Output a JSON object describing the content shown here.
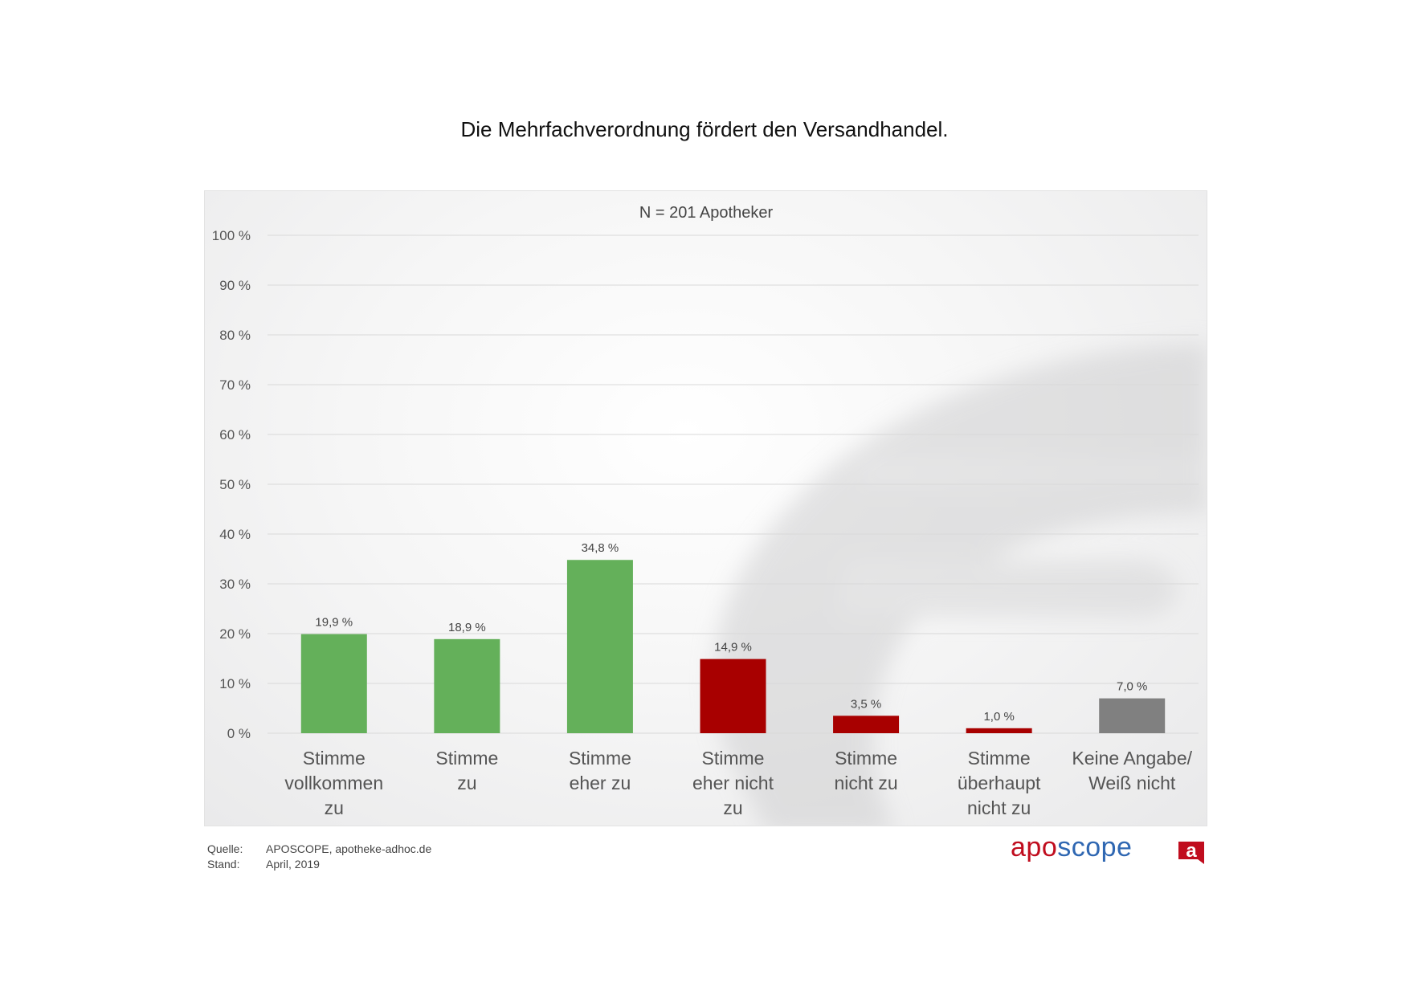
{
  "page": {
    "title": "Die Mehrfachverordnung fördert den Versandhandel."
  },
  "footer": {
    "source_label": "Quelle:",
    "source_value": "APOSCOPE, apotheke-adhoc.de",
    "date_label": "Stand:",
    "date_value": "April, 2019"
  },
  "logo": {
    "text_part1": "apo",
    "text_part2": "scope",
    "mark_letter": "a"
  },
  "colors": {
    "agree": "#64b05a",
    "disagree": "#a80000",
    "neutral": "#808080",
    "logo_red": "#c00d1e",
    "logo_blue": "#2f67b2"
  },
  "chart_data": {
    "type": "bar",
    "title": "Die Mehrfachverordnung fördert den Versandhandel.",
    "subtitle": "N = 201 Apotheker",
    "xlabel": "",
    "ylabel": "",
    "ylim": [
      0,
      100
    ],
    "yticks": [
      0,
      10,
      20,
      30,
      40,
      50,
      60,
      70,
      80,
      90,
      100
    ],
    "ytick_labels": [
      "0 %",
      "10 %",
      "20 %",
      "30 %",
      "40 %",
      "50 %",
      "60 %",
      "70 %",
      "80 %",
      "90 %",
      "100 %"
    ],
    "grid": true,
    "legend": "none",
    "categories": [
      [
        "Stimme",
        "vollkommen",
        "zu"
      ],
      [
        "Stimme",
        "zu"
      ],
      [
        "Stimme",
        "eher zu"
      ],
      [
        "Stimme",
        "eher nicht",
        "zu"
      ],
      [
        "Stimme",
        "nicht zu"
      ],
      [
        "Stimme",
        "überhaupt",
        "nicht zu"
      ],
      [
        "Keine Angabe/",
        "Weiß nicht"
      ]
    ],
    "values": [
      19.9,
      18.9,
      34.8,
      14.9,
      3.5,
      1.0,
      7.0
    ],
    "value_labels": [
      "19,9 %",
      "18,9 %",
      "34,8 %",
      "14,9 %",
      "3,5 %",
      "1,0 %",
      "7,0 %"
    ],
    "bar_colors": [
      "agree",
      "agree",
      "agree",
      "disagree",
      "disagree",
      "disagree",
      "neutral"
    ]
  }
}
